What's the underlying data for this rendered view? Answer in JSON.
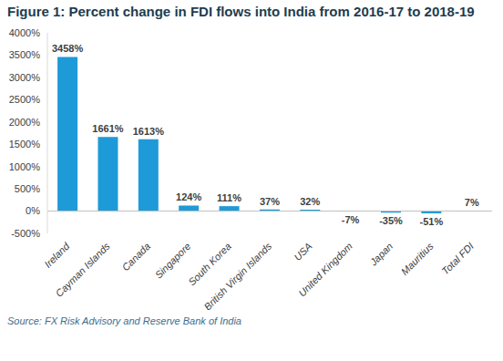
{
  "chart_data": {
    "type": "bar",
    "title": "Figure 1: Percent change in FDI flows into India from 2016-17 to 2018-19",
    "source": "Source: FX Risk Advisory and Reserve Bank of India",
    "categories": [
      "Ireland",
      "Cayman Islands",
      "Canada",
      "Singapore",
      "South Korea",
      "British Virgin Islands",
      "USA",
      "United Kingdom",
      "Japan",
      "Mauritius",
      "Total FDI"
    ],
    "values": [
      3458,
      1661,
      1613,
      124,
      111,
      37,
      32,
      -7,
      -35,
      -51,
      7
    ],
    "value_labels": [
      "3458%",
      "1661%",
      "1613%",
      "124%",
      "111%",
      "37%",
      "32%",
      "-7%",
      "-35%",
      "-51%",
      "7%"
    ],
    "data_labels": true,
    "color": "#1f9ad8",
    "ylim": [
      -500,
      4000
    ],
    "yticks": [
      {
        "value": -500,
        "label": "-500%"
      },
      {
        "value": 0,
        "label": "0%"
      },
      {
        "value": 500,
        "label": "500%"
      },
      {
        "value": 1000,
        "label": "1000%"
      },
      {
        "value": 1500,
        "label": "1500%"
      },
      {
        "value": 2000,
        "label": "2000%"
      },
      {
        "value": 2500,
        "label": "2500%"
      },
      {
        "value": 3000,
        "label": "3000%"
      },
      {
        "value": 3500,
        "label": "3500%"
      },
      {
        "value": 4000,
        "label": "4000%"
      }
    ],
    "grid": false
  }
}
